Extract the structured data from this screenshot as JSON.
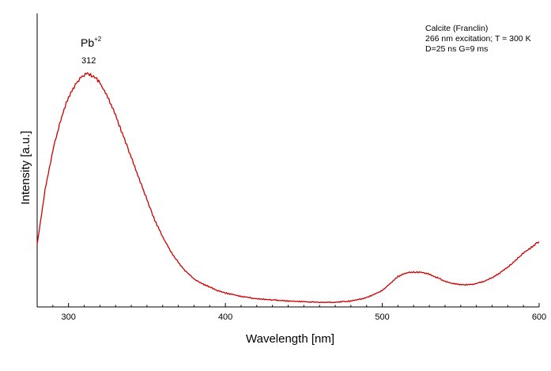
{
  "chart_data": {
    "type": "line",
    "xlabel": "Wavelength [nm]",
    "ylabel": "Intensity [a.u.]",
    "xlim": [
      280,
      600
    ],
    "ylim": [
      0,
      1
    ],
    "xticks": [
      300,
      400,
      500,
      600
    ],
    "grid": false,
    "legend": "none",
    "line_color": "#cc0000",
    "annotation_lines": [
      "Calcite (Franclin)",
      "266 nm excitation; T = 300 K",
      "D=25 ns G=9 ms"
    ],
    "peak_label": {
      "ion": "Pb",
      "charge": "+2",
      "value": "312",
      "x": 312,
      "y": 1.0
    },
    "series": [
      {
        "x": [
          280,
          282,
          285,
          290,
          295,
          300,
          305,
          308,
          312,
          316,
          320,
          325,
          330,
          335,
          340,
          345,
          350,
          355,
          360,
          365,
          370,
          375,
          380,
          385,
          390,
          395,
          400,
          410,
          420,
          430,
          440,
          450,
          460,
          470,
          480,
          490,
          500,
          505,
          510,
          515,
          520,
          525,
          530,
          535,
          540,
          545,
          550,
          555,
          560,
          565,
          570,
          575,
          580,
          585,
          590,
          595,
          600
        ],
        "y": [
          0.27,
          0.36,
          0.5,
          0.67,
          0.8,
          0.9,
          0.96,
          0.985,
          1.0,
          0.99,
          0.96,
          0.9,
          0.82,
          0.73,
          0.64,
          0.55,
          0.46,
          0.37,
          0.3,
          0.24,
          0.19,
          0.15,
          0.12,
          0.1,
          0.085,
          0.07,
          0.06,
          0.045,
          0.035,
          0.03,
          0.025,
          0.022,
          0.02,
          0.02,
          0.025,
          0.04,
          0.07,
          0.1,
          0.13,
          0.145,
          0.15,
          0.148,
          0.14,
          0.125,
          0.11,
          0.1,
          0.095,
          0.095,
          0.1,
          0.11,
          0.125,
          0.145,
          0.17,
          0.2,
          0.23,
          0.255,
          0.28
        ]
      }
    ]
  }
}
